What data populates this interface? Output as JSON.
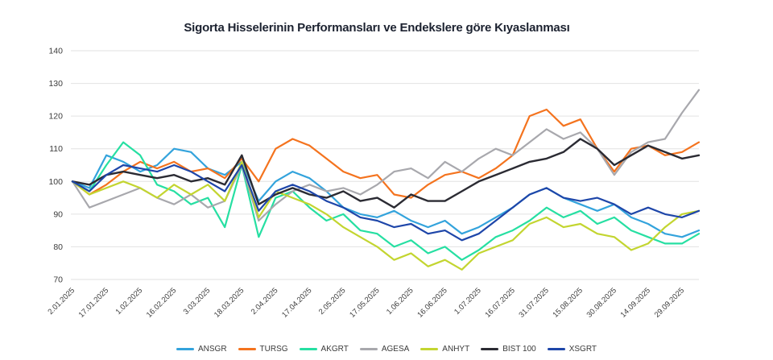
{
  "title": "Sigorta Hisselerinin Performansları ve Endekslere göre Kıyaslanması",
  "chart_data": {
    "type": "line",
    "title": "Sigorta Hisselerinin Performansları ve Endekslere göre Kıyaslanması",
    "xlabel": "",
    "ylabel": "",
    "ylim": [
      70,
      140
    ],
    "y_ticks": [
      70,
      80,
      90,
      100,
      110,
      120,
      130,
      140
    ],
    "grid": "horizontal",
    "legend_position": "bottom",
    "x_tick_labels": [
      "2.01.2025",
      "17.01.2025",
      "1.02.2025",
      "16.02.2025",
      "3.03.2025",
      "18.03.2025",
      "2.04.2025",
      "17.04.2025",
      "2.05.2025",
      "17.05.2025",
      "1.06.2025",
      "16.06.2025",
      "1.07.2025",
      "16.07.2025",
      "31.07.2025",
      "15.08.2025",
      "30.08.2025",
      "14.09.2025",
      "29.09.2025"
    ],
    "points_per_tick_interval": 2,
    "series": [
      {
        "name": "ANSGR",
        "color": "#33a3dc",
        "values": [
          100,
          98,
          108,
          106,
          103,
          105,
          110,
          109,
          104,
          102,
          106,
          94,
          100,
          103,
          101,
          97,
          92,
          90,
          89,
          91,
          88,
          86,
          88,
          84,
          86,
          89,
          92,
          96,
          98,
          95,
          93,
          91,
          93,
          89,
          87,
          84,
          83,
          85
        ]
      },
      {
        "name": "TURSG",
        "color": "#f4731e",
        "values": [
          100,
          96,
          99,
          103,
          106,
          104,
          106,
          103,
          104,
          101,
          107,
          100,
          110,
          113,
          111,
          107,
          103,
          101,
          102,
          96,
          95,
          99,
          102,
          103,
          101,
          104,
          108,
          120,
          122,
          117,
          119,
          110,
          103,
          110,
          111,
          108,
          109,
          112
        ]
      },
      {
        "name": "AKGRT",
        "color": "#26dfa2",
        "values": [
          100,
          97,
          105,
          112,
          108,
          99,
          97,
          93,
          95,
          86,
          105,
          83,
          95,
          97,
          92,
          88,
          90,
          85,
          84,
          80,
          82,
          78,
          80,
          76,
          79,
          83,
          85,
          88,
          92,
          89,
          91,
          87,
          89,
          85,
          83,
          81,
          81,
          84
        ]
      },
      {
        "name": "AGESA",
        "color": "#a8a8ad",
        "values": [
          100,
          92,
          94,
          96,
          98,
          95,
          93,
          96,
          92,
          94,
          105,
          88,
          93,
          97,
          99,
          97,
          98,
          96,
          99,
          103,
          104,
          101,
          106,
          103,
          107,
          110,
          108,
          112,
          116,
          113,
          115,
          110,
          102,
          109,
          112,
          113,
          121,
          128
        ]
      },
      {
        "name": "ANHYT",
        "color": "#c3d530",
        "values": [
          100,
          96,
          98,
          100,
          98,
          95,
          99,
          96,
          99,
          94,
          106,
          89,
          97,
          95,
          93,
          90,
          86,
          83,
          80,
          76,
          78,
          74,
          76,
          73,
          78,
          80,
          82,
          87,
          89,
          86,
          87,
          84,
          83,
          79,
          81,
          86,
          90,
          91
        ]
      },
      {
        "name": "BIST 100",
        "color": "#2b2b33",
        "values": [
          100,
          99,
          102,
          103,
          102,
          101,
          102,
          100,
          101,
          99,
          108,
          93,
          96,
          98,
          96,
          95,
          97,
          94,
          95,
          92,
          96,
          94,
          94,
          97,
          100,
          102,
          104,
          106,
          107,
          109,
          113,
          110,
          105,
          108,
          111,
          109,
          107,
          108
        ]
      },
      {
        "name": "XSGRT",
        "color": "#1e46a9",
        "values": [
          100,
          97,
          102,
          105,
          104,
          103,
          105,
          103,
          100,
          97,
          105,
          91,
          97,
          99,
          97,
          94,
          92,
          89,
          88,
          86,
          87,
          84,
          85,
          82,
          84,
          88,
          92,
          96,
          98,
          95,
          94,
          95,
          93,
          90,
          92,
          90,
          89,
          91
        ]
      }
    ]
  }
}
